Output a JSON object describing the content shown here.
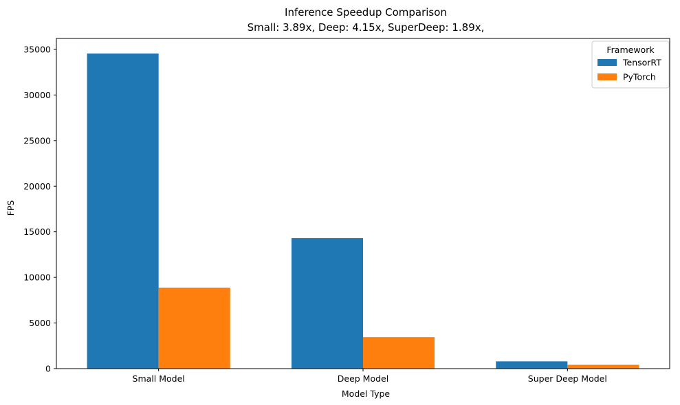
{
  "chart_data": {
    "type": "bar",
    "title": "Inference Speedup Comparison",
    "subtitle": "Small: 3.89x, Deep: 4.15x, SuperDeep: 1.89x,",
    "xlabel": "Model Type",
    "ylabel": "FPS",
    "categories": [
      "Small Model",
      "Deep Model",
      "Super Deep Model"
    ],
    "series": [
      {
        "name": "TensorRT",
        "color": "#1f77b4",
        "values": [
          34550,
          14300,
          800
        ]
      },
      {
        "name": "PyTorch",
        "color": "#ff7f0e",
        "values": [
          8880,
          3450,
          420
        ]
      }
    ],
    "ylim": [
      0,
      36200
    ],
    "yticks": [
      0,
      5000,
      10000,
      15000,
      20000,
      25000,
      30000,
      35000
    ],
    "legend": {
      "title": "Framework",
      "placement": "top-right"
    },
    "grid": false
  }
}
